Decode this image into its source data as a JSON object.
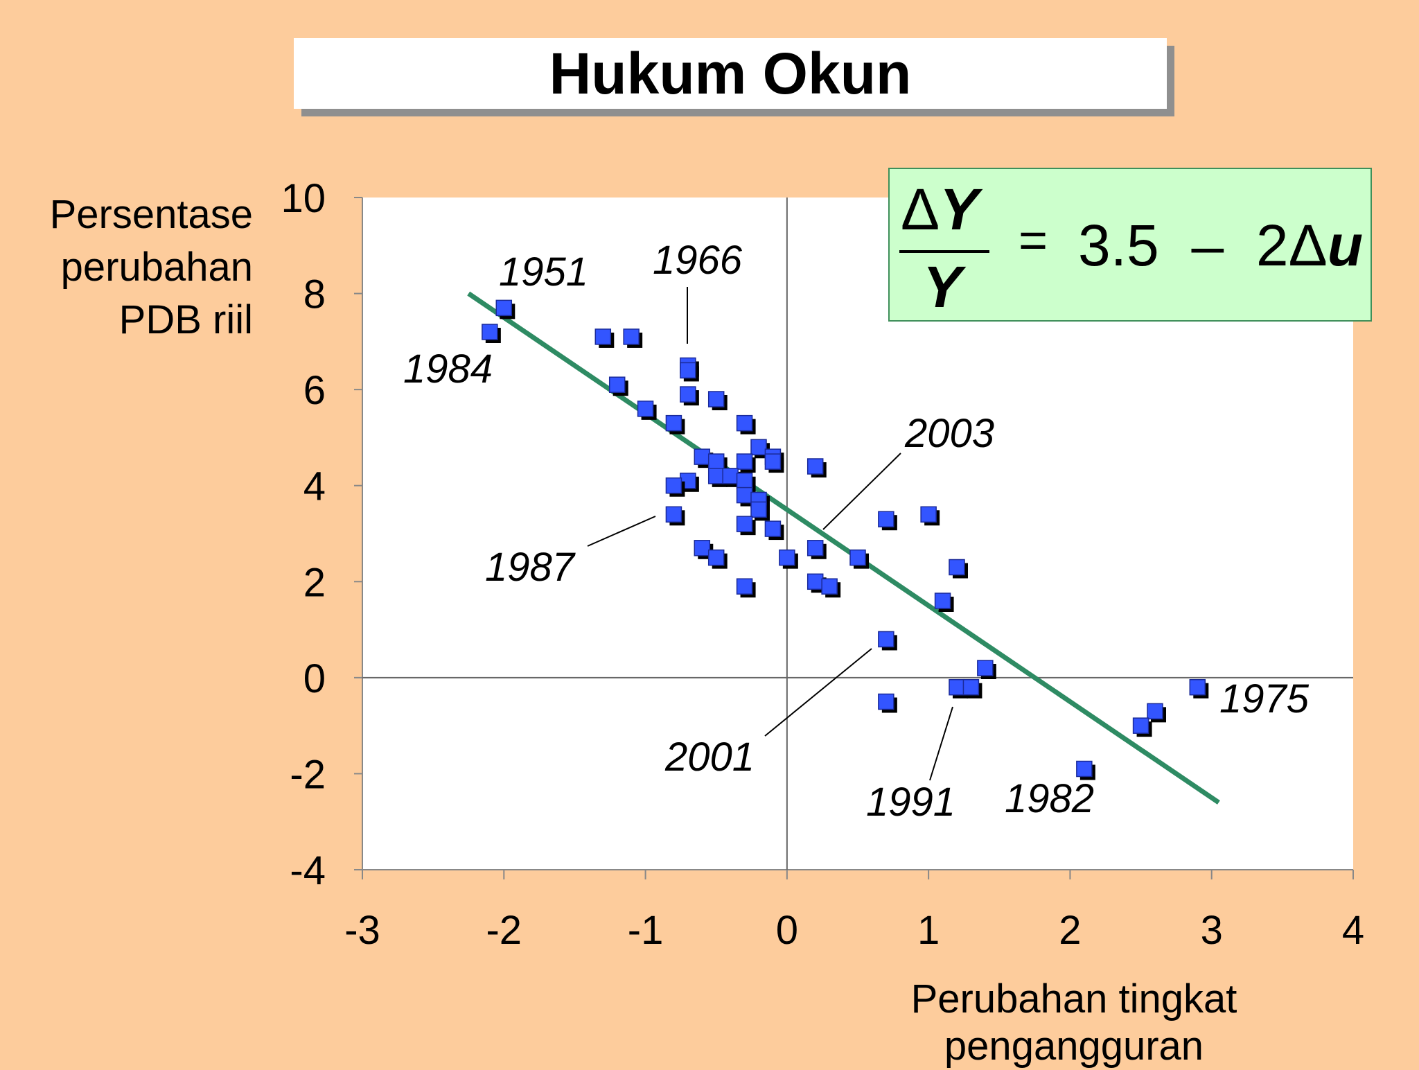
{
  "title": "Hukum Okun",
  "equation": {
    "delta": "Δ",
    "var_y": "Y",
    "equals": "=",
    "constant": "3.5",
    "minus": "–",
    "coef": "2Δ",
    "var_u": "u"
  },
  "chart_data": {
    "type": "scatter",
    "ylabel": "Persentase perubahan PDB riil",
    "xlabel": "Perubahan tingkat pengangguran",
    "xlim": [
      -3,
      4
    ],
    "ylim": [
      -4,
      10
    ],
    "xticks": [
      "-3",
      "-2",
      "-1",
      "0",
      "1",
      "2",
      "3",
      "4"
    ],
    "yticks": [
      "10",
      "8",
      "6",
      "4",
      "2",
      "0",
      "-2",
      "-4"
    ],
    "colors": {
      "marker": "#3355ff",
      "marker_shadow": "#000000",
      "fit_line": "#2e8b63",
      "background": "#FDCC9C"
    },
    "points": [
      [
        -2.0,
        7.7
      ],
      [
        -2.1,
        7.2
      ],
      [
        -1.3,
        7.1
      ],
      [
        -1.1,
        7.1
      ],
      [
        -0.7,
        6.5
      ],
      [
        -0.7,
        6.4
      ],
      [
        -1.2,
        6.1
      ],
      [
        -0.7,
        5.9
      ],
      [
        -0.5,
        5.8
      ],
      [
        -1.0,
        5.6
      ],
      [
        -0.8,
        5.3
      ],
      [
        -0.3,
        5.3
      ],
      [
        -0.2,
        4.8
      ],
      [
        -0.1,
        4.6
      ],
      [
        -0.1,
        4.5
      ],
      [
        -0.6,
        4.6
      ],
      [
        -0.5,
        4.5
      ],
      [
        -0.3,
        4.5
      ],
      [
        -0.5,
        4.2
      ],
      [
        -0.4,
        4.2
      ],
      [
        -0.3,
        4.1
      ],
      [
        -0.7,
        4.1
      ],
      [
        -0.8,
        4.0
      ],
      [
        -0.3,
        3.8
      ],
      [
        -0.2,
        3.7
      ],
      [
        -0.2,
        3.5
      ],
      [
        -0.8,
        3.4
      ],
      [
        -0.3,
        3.2
      ],
      [
        -0.1,
        3.1
      ],
      [
        0.2,
        4.4
      ],
      [
        -0.6,
        2.7
      ],
      [
        -0.5,
        2.5
      ],
      [
        0.0,
        2.5
      ],
      [
        0.2,
        2.7
      ],
      [
        0.5,
        2.5
      ],
      [
        -0.3,
        1.9
      ],
      [
        0.2,
        2.0
      ],
      [
        0.3,
        1.9
      ],
      [
        0.7,
        3.3
      ],
      [
        1.0,
        3.4
      ],
      [
        1.2,
        2.3
      ],
      [
        1.1,
        1.6
      ],
      [
        0.7,
        0.8
      ],
      [
        1.4,
        0.2
      ],
      [
        0.7,
        -0.5
      ],
      [
        1.2,
        -0.2
      ],
      [
        1.3,
        -0.2
      ],
      [
        2.9,
        -0.2
      ],
      [
        2.6,
        -0.7
      ],
      [
        2.5,
        -1.0
      ],
      [
        2.1,
        -1.9
      ]
    ],
    "fit_line": {
      "intercept": 3.5,
      "slope": -2,
      "x_range": [
        -2.25,
        3.05
      ]
    },
    "annotations": [
      {
        "label": "1951",
        "point": [
          -2.0,
          7.7
        ]
      },
      {
        "label": "1984",
        "point": [
          -2.1,
          7.2
        ]
      },
      {
        "label": "1966",
        "point": [
          -0.7,
          6.5
        ]
      },
      {
        "label": "1987",
        "point": [
          -0.8,
          3.4
        ]
      },
      {
        "label": "2003",
        "point": [
          0.25,
          3.0
        ]
      },
      {
        "label": "2001",
        "point": [
          0.7,
          0.8
        ]
      },
      {
        "label": "1991",
        "point": [
          1.2,
          -0.2
        ]
      },
      {
        "label": "1982",
        "point": [
          2.1,
          -1.9
        ]
      },
      {
        "label": "1975",
        "point": [
          2.9,
          -0.2
        ]
      }
    ]
  }
}
